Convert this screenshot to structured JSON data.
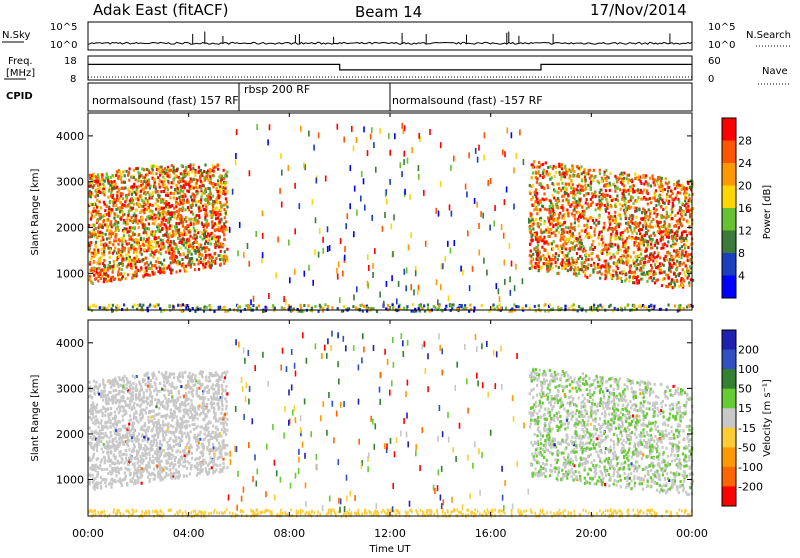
{
  "header": {
    "radar": "Adak East (fitACF)",
    "beam": "Beam 14",
    "date": "17/Nov/2014"
  },
  "noise_panel": {
    "left_label": "N.Sky",
    "right_label": "N.Search",
    "left_top_tick": "10^5",
    "left_bottom_tick": "10^0",
    "right_top_tick": "10^5",
    "right_bottom_tick": "10^0"
  },
  "freq_panel": {
    "left_label_line1": "Freq.",
    "left_label_line2": "[MHz]",
    "right_label": "Nave",
    "left_ticks": [
      "18",
      "8"
    ],
    "right_ticks": [
      "60",
      "0"
    ]
  },
  "cpid_panel": {
    "label": "CPID",
    "segments": [
      {
        "text": "normalsound (fast) 157 RF",
        "start_hour": 0.0,
        "end_hour": 6.0
      },
      {
        "text": "rbsp 200 RF",
        "start_hour": 6.0,
        "end_hour": 12.0
      },
      {
        "text": "normalsound (fast) -157 RF",
        "start_hour": 12.0,
        "end_hour": 24.0
      }
    ]
  },
  "power_panel": {
    "ylabel": "Slant Range [km]",
    "colorbar_label": "Power [dB]",
    "colorbar_ticks": [
      "28",
      "24",
      "20",
      "16",
      "12",
      "8",
      "4"
    ]
  },
  "velocity_panel": {
    "ylabel": "Slant Range [km]",
    "colorbar_label": "Velocity [m s⁻¹]",
    "colorbar_ticks": [
      "200",
      "100",
      "50",
      "15",
      "-15",
      "-50",
      "-100",
      "-200"
    ]
  },
  "xaxis": {
    "label": "Time UT",
    "ticks": [
      "00:00",
      "04:00",
      "08:00",
      "12:00",
      "16:00",
      "20:00",
      "00:00"
    ]
  },
  "colors": {
    "power_scale": [
      "#0000ff",
      "#1a3fbf",
      "#3a7a3a",
      "#66c233",
      "#ffd700",
      "#ff9900",
      "#ff5500",
      "#ff0000"
    ],
    "velocity_scale": [
      "#ff0000",
      "#ff6600",
      "#ff9900",
      "#ffcc33",
      "#c8c8c8",
      "#66cc33",
      "#338033",
      "#3050c0",
      "#2020b0"
    ],
    "ground_scatter": "#c8c8c8"
  },
  "chart_data": [
    {
      "type": "line",
      "name_hint": "noise",
      "x_unit": "hour UT",
      "x": [
        0,
        24
      ],
      "ylim_log10": [
        0,
        5
      ],
      "series": [
        {
          "values_log10": [
            1.2,
            1.2
          ]
        }
      ]
    },
    {
      "type": "line",
      "name_hint": "frequency and nave",
      "x_unit": "hour UT",
      "x": [
        0,
        10.0,
        10.0,
        18.0,
        18.0,
        24.0
      ],
      "ylim": [
        8,
        18
      ],
      "series": [
        {
          "values": [
            14.5,
            14.5,
            12.2,
            12.2,
            14.5,
            14.5
          ]
        }
      ],
      "nave_values": [
        0,
        0,
        0,
        0,
        0,
        0
      ],
      "nave_ylim": [
        0,
        60
      ]
    },
    {
      "type": "heatmap",
      "panel": "power",
      "x_unit": "hour UT",
      "xlim": [
        0,
        24
      ],
      "ylim": [
        200,
        4500
      ],
      "zlim_db": [
        0,
        30
      ],
      "regions": [
        {
          "t_start": 0.0,
          "t_end": 5.5,
          "r_low": 800,
          "r_high": 3400,
          "level": "high"
        },
        {
          "t_start": 17.5,
          "t_end": 24.0,
          "r_low": 700,
          "r_high": 3500,
          "level": "high"
        },
        {
          "t_start": 0.0,
          "t_end": 24.0,
          "r_low": 200,
          "r_high": 350,
          "level": "low"
        }
      ]
    },
    {
      "type": "heatmap",
      "panel": "velocity",
      "x_unit": "hour UT",
      "xlim": [
        0,
        24
      ],
      "ylim": [
        200,
        4500
      ],
      "zlim": [
        -250,
        250
      ],
      "regions": [
        {
          "t_start": 0.0,
          "t_end": 5.5,
          "r_low": 800,
          "r_high": 3400,
          "kind": "ground"
        },
        {
          "t_start": 17.5,
          "t_end": 24.0,
          "r_low": 700,
          "r_high": 3500,
          "kind": "ground-and-positive"
        }
      ]
    }
  ]
}
